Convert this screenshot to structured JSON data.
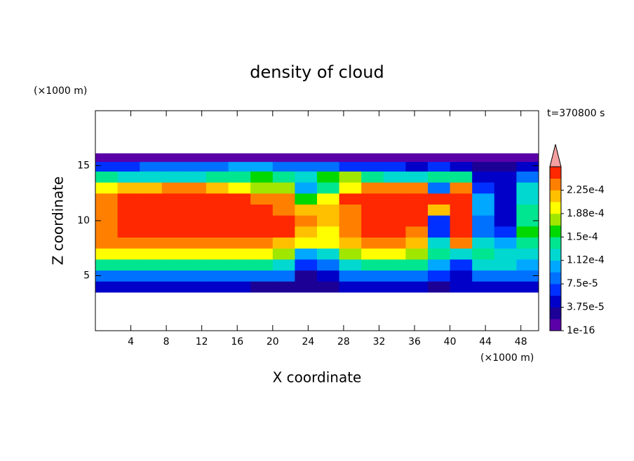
{
  "chart_data": {
    "type": "contour",
    "title": "density of cloud",
    "x_label": "X coordinate",
    "y_label": "Z coordinate",
    "x_unit": "(×1000 m)",
    "y_unit": "(×1000 m)",
    "annotation": "t=370800 s",
    "xlim": [
      0,
      50
    ],
    "ylim": [
      0,
      20
    ],
    "xticks": [
      4,
      8,
      12,
      16,
      20,
      24,
      28,
      32,
      36,
      40,
      44,
      48
    ],
    "yticks": [
      5,
      10,
      15
    ],
    "x": [
      1.25,
      3.75,
      6.25,
      8.75,
      11.25,
      13.75,
      16.25,
      18.75,
      21.25,
      23.75,
      26.25,
      28.75,
      31.25,
      33.75,
      36.25,
      38.75,
      41.25,
      43.75,
      46.25,
      48.75
    ],
    "y": [
      4,
      5,
      6,
      7,
      8,
      9,
      10,
      11,
      12,
      13,
      14,
      15,
      15.75
    ],
    "z": [
      [
        4e-05,
        4e-05,
        4e-05,
        4e-05,
        4e-05,
        4e-05,
        4e-05,
        3e-05,
        3e-05,
        2e-05,
        2e-05,
        4e-05,
        4e-05,
        4e-05,
        4e-05,
        3e-05,
        4e-05,
        4e-05,
        4e-05,
        4e-05
      ],
      [
        9e-05,
        9e-05,
        9e-05,
        9e-05,
        9e-05,
        9e-05,
        9e-05,
        8e-05,
        8e-05,
        3e-05,
        4e-05,
        8e-05,
        9e-05,
        9e-05,
        9e-05,
        6e-05,
        4e-05,
        9e-05,
        9e-05,
        9e-05
      ],
      [
        0.00015,
        0.00015,
        0.00015,
        0.00015,
        0.00015,
        0.00015,
        0.00015,
        0.00014,
        0.00013,
        6e-05,
        8e-05,
        0.00013,
        0.00014,
        0.00014,
        0.00014,
        0.00011,
        6e-05,
        0.00012,
        0.00012,
        0.00011
      ],
      [
        0.00019,
        0.00019,
        0.00019,
        0.00019,
        0.00019,
        0.00019,
        0.00019,
        0.00019,
        0.00017,
        0.00011,
        0.00013,
        0.00018,
        0.00019,
        0.00019,
        0.00018,
        0.00015,
        0.00012,
        0.00014,
        0.00013,
        0.00012
      ],
      [
        0.00023,
        0.000235,
        0.000235,
        0.000235,
        0.000235,
        0.000235,
        0.000235,
        0.00023,
        0.00022,
        0.00019,
        0.00019,
        0.00022,
        0.00023,
        0.00023,
        0.00021,
        0.00012,
        0.00024,
        0.00012,
        0.0001,
        0.00015
      ],
      [
        0.00024,
        0.00025,
        0.00025,
        0.00025,
        0.00025,
        0.00025,
        0.00025,
        0.00025,
        0.000245,
        0.00022,
        0.0002,
        0.00023,
        0.000245,
        0.00025,
        0.00024,
        7e-05,
        0.00025,
        8e-05,
        6e-05,
        0.00016
      ],
      [
        0.00024,
        0.00025,
        0.00025,
        0.00025,
        0.00025,
        0.00025,
        0.00025,
        0.00025,
        0.000245,
        0.00024,
        0.00021,
        0.000235,
        0.000245,
        0.00025,
        0.000245,
        6e-05,
        0.00025,
        9e-05,
        4e-05,
        0.00015
      ],
      [
        0.00023,
        0.00025,
        0.00025,
        0.00025,
        0.00025,
        0.00025,
        0.00025,
        0.00025,
        0.00024,
        0.00021,
        0.00022,
        0.00024,
        0.000245,
        0.00025,
        0.00025,
        0.00022,
        0.00025,
        0.0001,
        4e-05,
        0.00014
      ],
      [
        0.00024,
        0.000245,
        0.00025,
        0.00025,
        0.00025,
        0.00025,
        0.000245,
        0.00024,
        0.00023,
        0.00016,
        0.00019,
        0.000245,
        0.000245,
        0.000245,
        0.000245,
        0.00026,
        0.00025,
        0.0001,
        4e-05,
        0.00012
      ],
      [
        0.0002,
        0.00021,
        0.000225,
        0.00023,
        0.00023,
        0.00022,
        0.0002,
        0.00018,
        0.00017,
        0.0001,
        0.00015,
        0.00019,
        0.00023,
        0.00024,
        0.00023,
        9e-05,
        0.00023,
        6e-05,
        4e-05,
        0.00012
      ],
      [
        0.00014,
        0.00013,
        0.00012,
        0.00012,
        0.00013,
        0.00014,
        0.00015,
        0.00016,
        0.00015,
        0.00012,
        0.00016,
        0.00017,
        0.00014,
        0.00013,
        0.00012,
        0.00014,
        0.00014,
        5e-05,
        4e-05,
        8e-05
      ],
      [
        7e-05,
        7e-05,
        8e-05,
        9e-05,
        9e-05,
        9e-05,
        0.0001,
        0.0001,
        9e-05,
        8e-05,
        8e-05,
        7e-05,
        6e-05,
        6e-05,
        5e-05,
        6e-05,
        5e-05,
        3e-05,
        3e-05,
        5e-05
      ],
      [
        1.5e-05,
        1.5e-05,
        1.5e-05,
        1.5e-05,
        1.5e-05,
        1.5e-05,
        1.5e-05,
        1.5e-05,
        1.5e-05,
        1.5e-05,
        1.5e-05,
        1.5e-05,
        1.5e-05,
        1.5e-05,
        1.5e-05,
        1.5e-05,
        1.5e-05,
        1.5e-05,
        1.5e-05,
        1.5e-05
      ]
    ],
    "clim": [
      1e-16,
      0.0002625
    ],
    "colors": [
      "#5a00a8",
      "#1c0096",
      "#0000c8",
      "#0030ff",
      "#0070ff",
      "#00a8ff",
      "#00d8d0",
      "#00e690",
      "#00d800",
      "#a0e600",
      "#ffff00",
      "#ffc000",
      "#ff8000",
      "#ff2800"
    ],
    "extend_color": "#f4a0a0",
    "cticks": [
      {
        "value": 1e-16,
        "label": "1e-16"
      },
      {
        "value": 3.75e-05,
        "label": "3.75e-5"
      },
      {
        "value": 7.5e-05,
        "label": "7.5e-5"
      },
      {
        "value": 0.0001125,
        "label": "1.12e-4"
      },
      {
        "value": 0.00015,
        "label": "1.5e-4"
      },
      {
        "value": 0.0001875,
        "label": "1.88e-4"
      },
      {
        "value": 0.000225,
        "label": "2.25e-4"
      }
    ]
  }
}
